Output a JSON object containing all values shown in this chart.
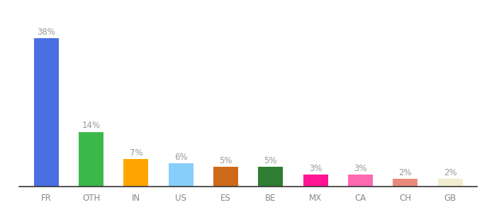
{
  "categories": [
    "FR",
    "OTH",
    "IN",
    "US",
    "ES",
    "BE",
    "MX",
    "CA",
    "CH",
    "GB"
  ],
  "values": [
    38,
    14,
    7,
    6,
    5,
    5,
    3,
    3,
    2,
    2
  ],
  "labels": [
    "38%",
    "14%",
    "7%",
    "6%",
    "5%",
    "5%",
    "3%",
    "3%",
    "2%",
    "2%"
  ],
  "bar_colors": [
    "#4A6FE3",
    "#3CB84A",
    "#FFA500",
    "#87CEFA",
    "#CD6A1A",
    "#2E7D32",
    "#FF1493",
    "#FF69B4",
    "#E8897A",
    "#F0EDD0"
  ],
  "background_color": "#ffffff",
  "label_color": "#999999",
  "label_fontsize": 8.5,
  "tick_fontsize": 8.5,
  "tick_color": "#888888",
  "ylim": [
    0,
    44
  ],
  "bar_width": 0.55
}
